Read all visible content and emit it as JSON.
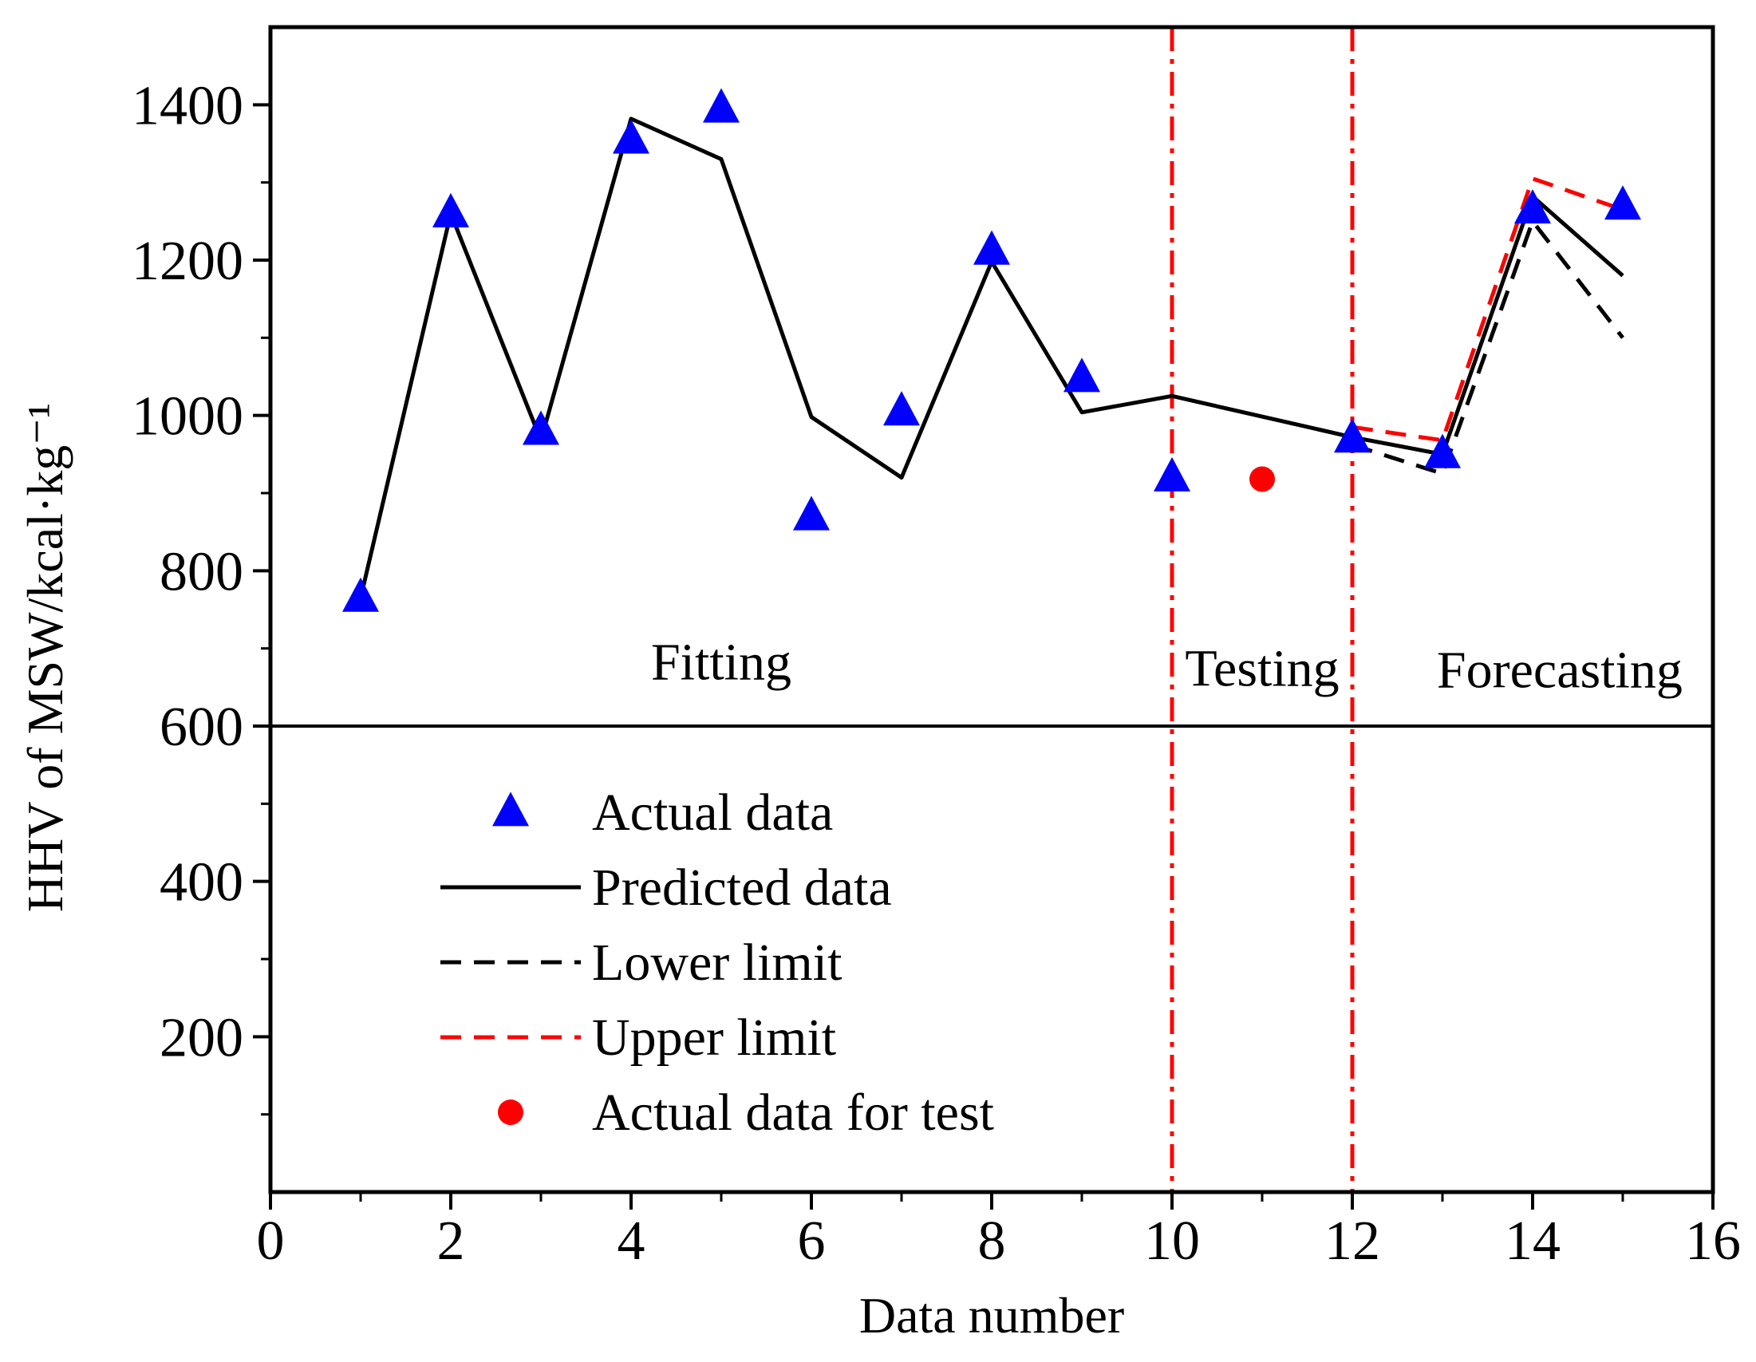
{
  "chart_data": {
    "type": "line",
    "xlabel": "Data number",
    "ylabel": "HHV of MSW/kcal·kg⁻¹",
    "xlim": [
      0,
      16
    ],
    "ylim": [
      0,
      1500
    ],
    "xticks": [
      0,
      2,
      4,
      6,
      8,
      10,
      12,
      14,
      16
    ],
    "yticks": [
      200,
      400,
      600,
      800,
      1000,
      1200,
      1400
    ],
    "grid": false,
    "legend_position": "bottom-left",
    "series": [
      {
        "name": "Actual data",
        "style": "triangle-marker",
        "color": "#0000ff",
        "x": [
          1,
          2,
          3,
          4,
          5,
          6,
          7,
          8,
          9,
          10,
          12,
          13,
          14,
          15
        ],
        "values": [
          765,
          1260,
          980,
          1355,
          1395,
          870,
          1005,
          1212,
          1048,
          920,
          970,
          950,
          1265,
          1270
        ]
      },
      {
        "name": "Predicted data",
        "style": "solid-line",
        "color": "#000000",
        "x": [
          1,
          2,
          3,
          4,
          5,
          6,
          7,
          8,
          9,
          10,
          12,
          13,
          14,
          15
        ],
        "values": [
          765,
          1260,
          968,
          1382,
          1330,
          998,
          920,
          1198,
          1004,
          1025,
          972,
          950,
          1282,
          1180
        ]
      },
      {
        "name": "Lower limit",
        "style": "dashed-line",
        "color": "#000000",
        "x": [
          12,
          13,
          14,
          15
        ],
        "values": [
          962,
          925,
          1250,
          1100
        ]
      },
      {
        "name": "Upper limit",
        "style": "dashed-line",
        "color": "#ff0000",
        "x": [
          12,
          13,
          14,
          15
        ],
        "values": [
          985,
          968,
          1305,
          1265
        ]
      },
      {
        "name": "Actual data for test",
        "style": "circle-marker",
        "color": "#ff0000",
        "x": [
          11
        ],
        "values": [
          918
        ]
      }
    ],
    "vertical_lines": [
      {
        "x": 10,
        "style": "dash-dot",
        "color": "#ff0000"
      },
      {
        "x": 12,
        "style": "dash-dot",
        "color": "#ff0000"
      }
    ],
    "horizontal_lines": [
      {
        "y": 600,
        "style": "solid",
        "color": "#000000"
      }
    ],
    "annotations": [
      {
        "text": "Fitting",
        "x": 5,
        "y": 660
      },
      {
        "text": "Testing",
        "x": 11,
        "y": 652
      },
      {
        "text": "Forecasting",
        "x": 14.3,
        "y": 650
      }
    ]
  }
}
